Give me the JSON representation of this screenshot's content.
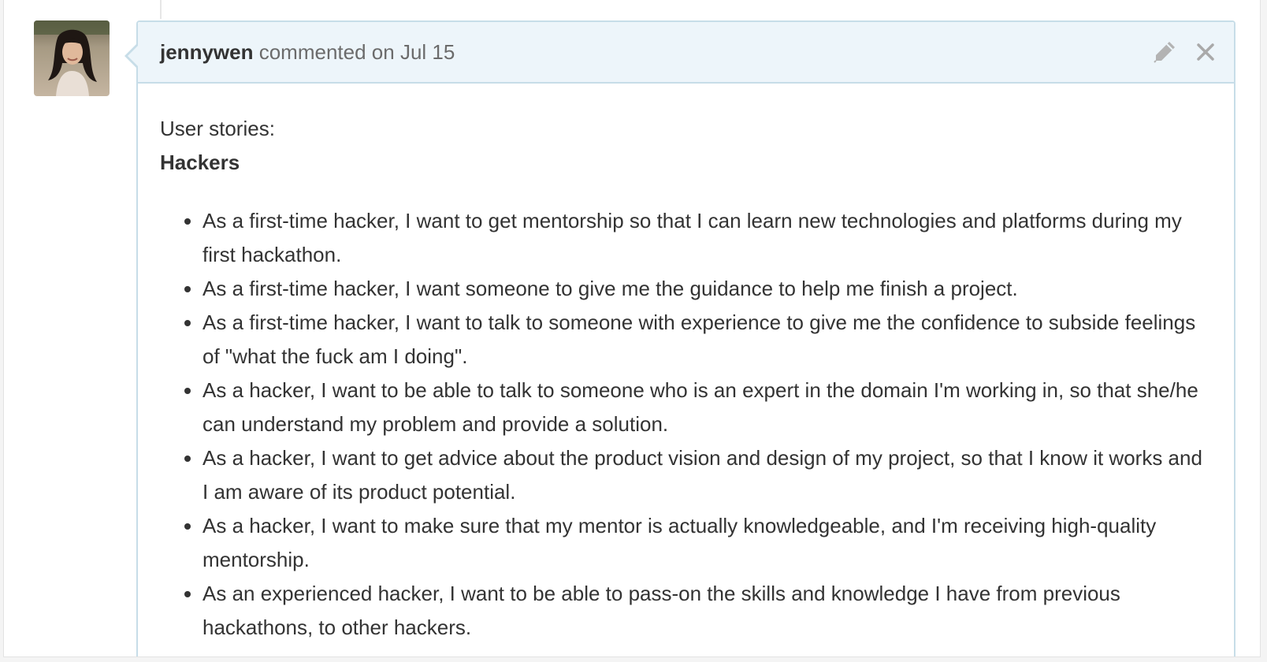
{
  "comment": {
    "author": "jennywen",
    "action": "commented on",
    "date": "Jul 15",
    "icons": {
      "avatar": "user-avatar",
      "edit": "pencil-icon",
      "close": "close-icon"
    },
    "colors": {
      "header_bg": "#edf5fa",
      "border": "#c7dde8",
      "text": "#333333",
      "muted": "#6b6b6b"
    }
  },
  "body": {
    "intro": "User stories:",
    "heading": "Hackers",
    "stories": [
      "As a first-time hacker, I want to get mentorship so that I can learn new technologies and platforms during my first hackathon.",
      "As a first-time hacker, I want someone to give me the guidance to help me finish a project.",
      "As a first-time hacker, I want to talk to someone with experience to give me the confidence to subside feelings of \"what the fuck am I doing\".",
      "As a hacker, I want to be able to talk to someone who is an expert in the domain I'm working in, so that she/he can understand my problem and provide a solution.",
      "As a hacker, I want to get advice about the product vision and design of my project, so that I know it works and I am aware of its product potential.",
      "As a hacker, I want to make sure that my mentor is actually knowledgeable, and I'm receiving high-quality mentorship.",
      "As an experienced hacker, I want to be able to pass-on the skills and knowledge I have from previous hackathons, to other hackers."
    ]
  }
}
